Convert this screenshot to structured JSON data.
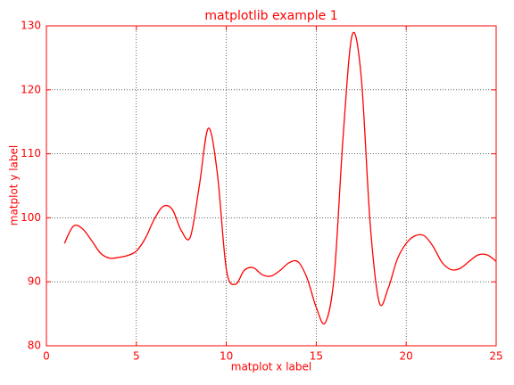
{
  "chart_data": {
    "type": "line",
    "title": "matplotlib example 1",
    "xlabel": "matplot x label",
    "ylabel": "matplot y label",
    "x": [
      1,
      1.5,
      2,
      2.5,
      3,
      3.5,
      4,
      4.5,
      5,
      5.5,
      6,
      6.5,
      7,
      7.5,
      8,
      8.5,
      9,
      9.5,
      10,
      10.5,
      11,
      11.5,
      12,
      12.5,
      13,
      13.5,
      14,
      14.5,
      15,
      15.5,
      16,
      16.5,
      17,
      17.5,
      18,
      18.5,
      19,
      19.5,
      20,
      20.5,
      21,
      21.5,
      22,
      22.5,
      23,
      23.5,
      24,
      24.5,
      25
    ],
    "series": [
      {
        "color": "#ff0000",
        "values": [
          96,
          98.7,
          98.3,
          96.5,
          94.5,
          93.7,
          93.8,
          94.1,
          94.8,
          96.8,
          99.8,
          101.8,
          101.3,
          98,
          97,
          105,
          114,
          107,
          92,
          89.6,
          91.8,
          92.2,
          91.1,
          90.9,
          91.8,
          93,
          93.1,
          90.5,
          86,
          83.6,
          91,
          113,
          128.6,
          122,
          99,
          86.8,
          89,
          93.5,
          96,
          97.2,
          97.2,
          95.5,
          93,
          91.9,
          92.1,
          93.2,
          94.2,
          94.2,
          93.2
        ]
      }
    ],
    "xlim": [
      0,
      25
    ],
    "ylim": [
      80,
      130
    ],
    "xticks": [
      0,
      5,
      10,
      15,
      20,
      25
    ],
    "yticks": [
      80,
      90,
      100,
      110,
      120,
      130
    ],
    "grid": true,
    "axis_color": "#ff0000"
  }
}
